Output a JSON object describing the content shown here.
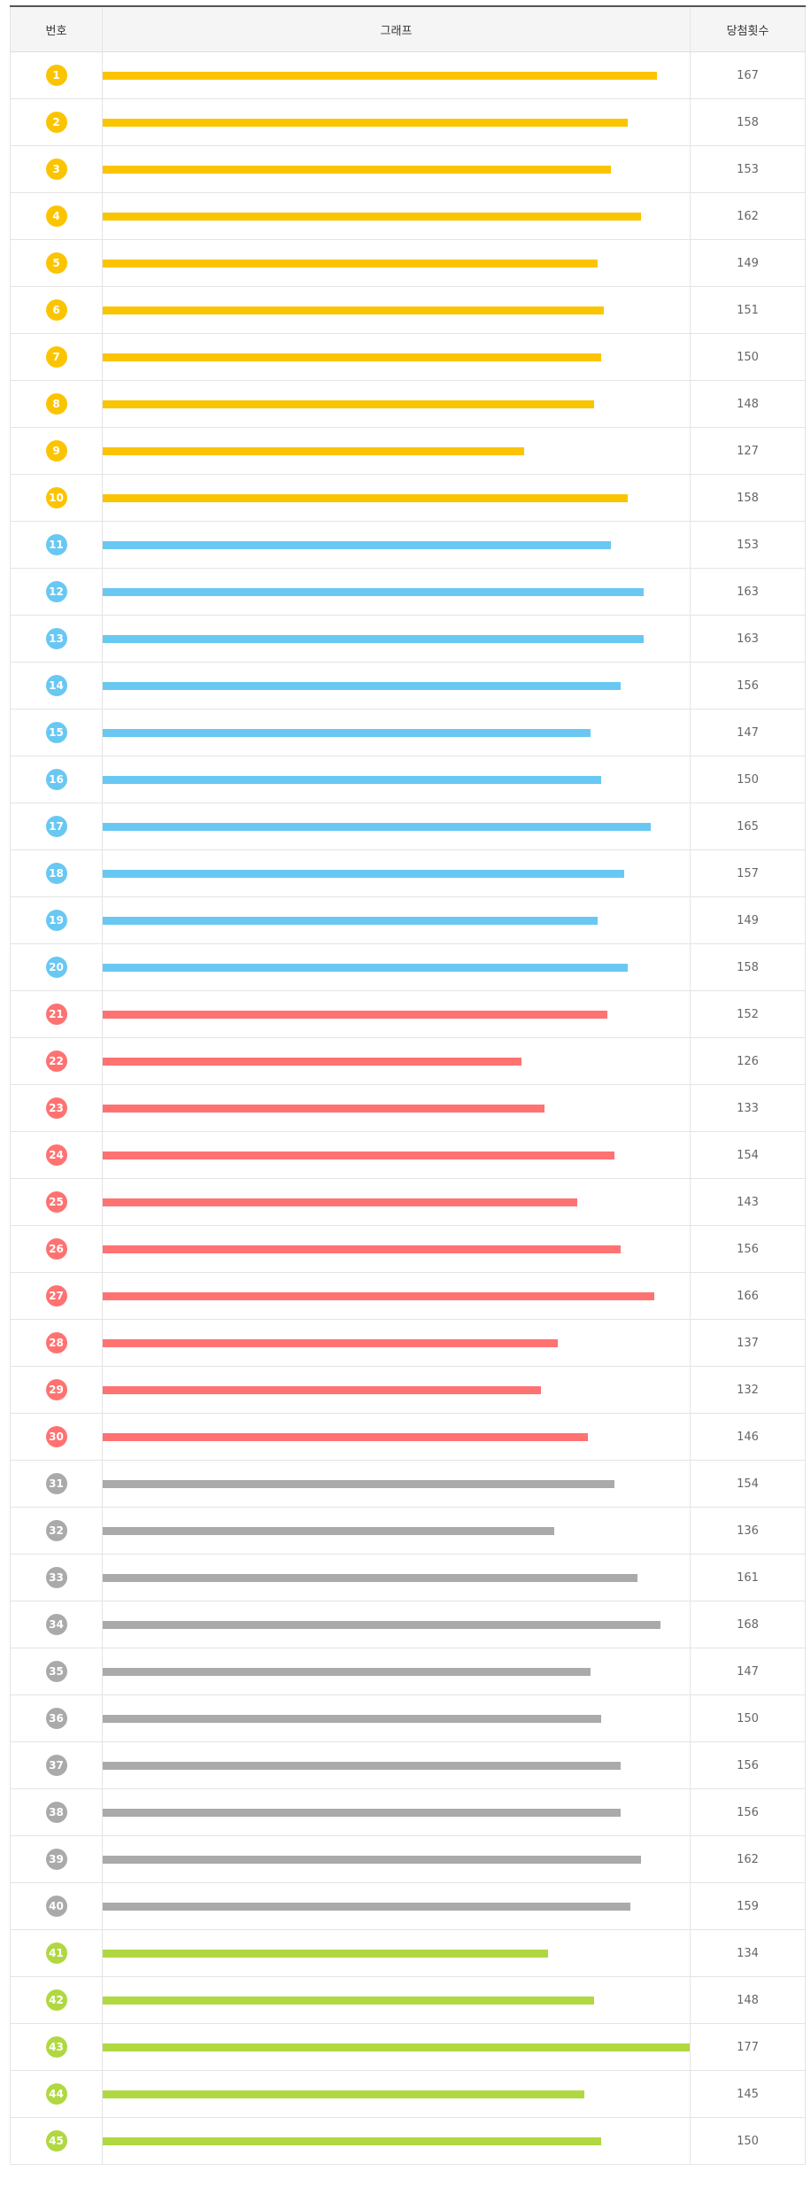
{
  "header": {
    "number": "번호",
    "graph": "그래프",
    "count": "당첨횟수"
  },
  "colors": {
    "yellow": "#fbc400",
    "blue": "#69c8f2",
    "red": "#ff7272",
    "gray": "#aaaaaa",
    "green": "#b0d840"
  },
  "chart_data": {
    "type": "bar",
    "orientation": "horizontal",
    "xlim": [
      0,
      177
    ],
    "categories": [
      "1",
      "2",
      "3",
      "4",
      "5",
      "6",
      "7",
      "8",
      "9",
      "10",
      "11",
      "12",
      "13",
      "14",
      "15",
      "16",
      "17",
      "18",
      "19",
      "20",
      "21",
      "22",
      "23",
      "24",
      "25",
      "26",
      "27",
      "28",
      "29",
      "30",
      "31",
      "32",
      "33",
      "34",
      "35",
      "36",
      "37",
      "38",
      "39",
      "40",
      "41",
      "42",
      "43",
      "44",
      "45"
    ],
    "values": [
      167,
      158,
      153,
      162,
      149,
      151,
      150,
      148,
      127,
      158,
      153,
      163,
      163,
      156,
      147,
      150,
      165,
      157,
      149,
      158,
      152,
      126,
      133,
      154,
      143,
      156,
      166,
      137,
      132,
      146,
      154,
      136,
      161,
      168,
      147,
      150,
      156,
      156,
      162,
      159,
      134,
      148,
      177,
      145,
      150
    ],
    "category_colors": [
      "yellow",
      "yellow",
      "yellow",
      "yellow",
      "yellow",
      "yellow",
      "yellow",
      "yellow",
      "yellow",
      "yellow",
      "blue",
      "blue",
      "blue",
      "blue",
      "blue",
      "blue",
      "blue",
      "blue",
      "blue",
      "blue",
      "red",
      "red",
      "red",
      "red",
      "red",
      "red",
      "red",
      "red",
      "red",
      "red",
      "gray",
      "gray",
      "gray",
      "gray",
      "gray",
      "gray",
      "gray",
      "gray",
      "gray",
      "gray",
      "green",
      "green",
      "green",
      "green",
      "green"
    ]
  }
}
